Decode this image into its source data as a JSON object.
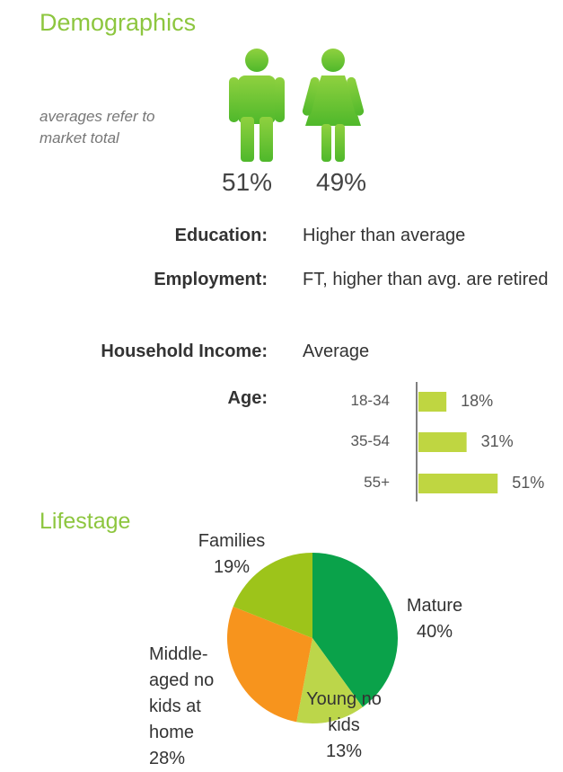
{
  "header": {
    "title": "Demographics",
    "note": "averages refer to market  total"
  },
  "gender": {
    "male": "51%",
    "female": "49%"
  },
  "profile": [
    {
      "label": "Education:",
      "value": "Higher than average"
    },
    {
      "label": "Employment:",
      "value": "FT, higher than avg. are retired"
    },
    {
      "label": "Household Income:",
      "value": "Average"
    },
    {
      "label": "Age:"
    }
  ],
  "chart_data": [
    {
      "type": "hbar",
      "categories": [
        "18-34",
        "35-54",
        "55+"
      ],
      "values": [
        18,
        31,
        51
      ],
      "value_labels": [
        "18%",
        "31%",
        "51%"
      ],
      "color": "#bfd641"
    },
    {
      "type": "pie",
      "title": "Lifestage",
      "categories": [
        "Mature",
        "Young no kids",
        "Middle-aged no kids at home",
        "Families"
      ],
      "values": [
        40,
        13,
        28,
        19
      ],
      "value_labels": [
        "40%",
        "13%",
        "28%",
        "19%"
      ],
      "colors": [
        "#0aa24a",
        "#bcd64a",
        "#f7941d",
        "#9dc41a"
      ]
    }
  ]
}
